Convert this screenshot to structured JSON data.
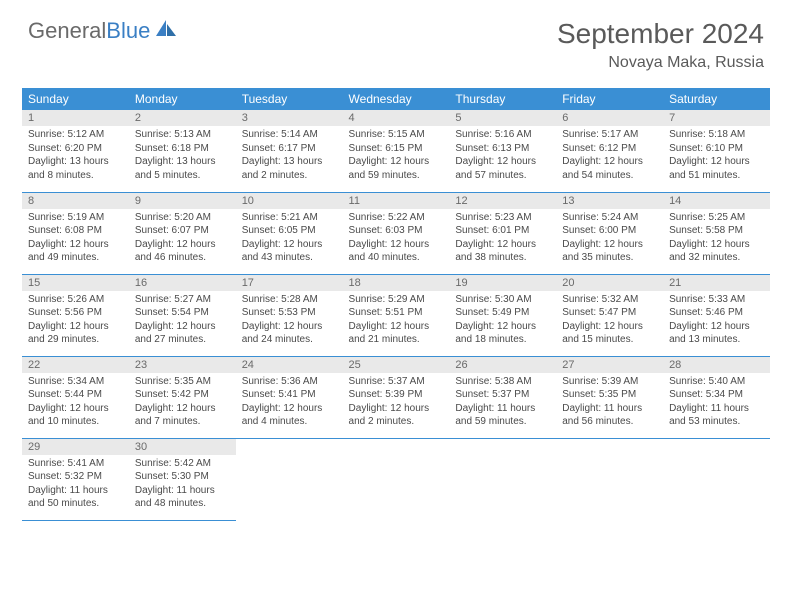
{
  "brand": {
    "part1": "General",
    "part2": "Blue"
  },
  "month_title": "September 2024",
  "location": "Novaya Maka, Russia",
  "colors": {
    "header_bg": "#3a8fd4",
    "daynum_bg": "#e9e9e9",
    "text": "#4a4a4a",
    "brand_gray": "#6a6a6a",
    "brand_blue": "#3a7fc4",
    "border": "#3a8fd4",
    "page_bg": "#ffffff"
  },
  "typography": {
    "month_title_fontsize": 28,
    "location_fontsize": 16,
    "header_fontsize": 12,
    "daynum_fontsize": 11,
    "body_fontsize": 10
  },
  "weekdays": [
    "Sunday",
    "Monday",
    "Tuesday",
    "Wednesday",
    "Thursday",
    "Friday",
    "Saturday"
  ],
  "days": [
    {
      "n": 1,
      "sunrise": "5:12 AM",
      "sunset": "6:20 PM",
      "dh": 13,
      "dm": 8
    },
    {
      "n": 2,
      "sunrise": "5:13 AM",
      "sunset": "6:18 PM",
      "dh": 13,
      "dm": 5
    },
    {
      "n": 3,
      "sunrise": "5:14 AM",
      "sunset": "6:17 PM",
      "dh": 13,
      "dm": 2
    },
    {
      "n": 4,
      "sunrise": "5:15 AM",
      "sunset": "6:15 PM",
      "dh": 12,
      "dm": 59
    },
    {
      "n": 5,
      "sunrise": "5:16 AM",
      "sunset": "6:13 PM",
      "dh": 12,
      "dm": 57
    },
    {
      "n": 6,
      "sunrise": "5:17 AM",
      "sunset": "6:12 PM",
      "dh": 12,
      "dm": 54
    },
    {
      "n": 7,
      "sunrise": "5:18 AM",
      "sunset": "6:10 PM",
      "dh": 12,
      "dm": 51
    },
    {
      "n": 8,
      "sunrise": "5:19 AM",
      "sunset": "6:08 PM",
      "dh": 12,
      "dm": 49
    },
    {
      "n": 9,
      "sunrise": "5:20 AM",
      "sunset": "6:07 PM",
      "dh": 12,
      "dm": 46
    },
    {
      "n": 10,
      "sunrise": "5:21 AM",
      "sunset": "6:05 PM",
      "dh": 12,
      "dm": 43
    },
    {
      "n": 11,
      "sunrise": "5:22 AM",
      "sunset": "6:03 PM",
      "dh": 12,
      "dm": 40
    },
    {
      "n": 12,
      "sunrise": "5:23 AM",
      "sunset": "6:01 PM",
      "dh": 12,
      "dm": 38
    },
    {
      "n": 13,
      "sunrise": "5:24 AM",
      "sunset": "6:00 PM",
      "dh": 12,
      "dm": 35
    },
    {
      "n": 14,
      "sunrise": "5:25 AM",
      "sunset": "5:58 PM",
      "dh": 12,
      "dm": 32
    },
    {
      "n": 15,
      "sunrise": "5:26 AM",
      "sunset": "5:56 PM",
      "dh": 12,
      "dm": 29
    },
    {
      "n": 16,
      "sunrise": "5:27 AM",
      "sunset": "5:54 PM",
      "dh": 12,
      "dm": 27
    },
    {
      "n": 17,
      "sunrise": "5:28 AM",
      "sunset": "5:53 PM",
      "dh": 12,
      "dm": 24
    },
    {
      "n": 18,
      "sunrise": "5:29 AM",
      "sunset": "5:51 PM",
      "dh": 12,
      "dm": 21
    },
    {
      "n": 19,
      "sunrise": "5:30 AM",
      "sunset": "5:49 PM",
      "dh": 12,
      "dm": 18
    },
    {
      "n": 20,
      "sunrise": "5:32 AM",
      "sunset": "5:47 PM",
      "dh": 12,
      "dm": 15
    },
    {
      "n": 21,
      "sunrise": "5:33 AM",
      "sunset": "5:46 PM",
      "dh": 12,
      "dm": 13
    },
    {
      "n": 22,
      "sunrise": "5:34 AM",
      "sunset": "5:44 PM",
      "dh": 12,
      "dm": 10
    },
    {
      "n": 23,
      "sunrise": "5:35 AM",
      "sunset": "5:42 PM",
      "dh": 12,
      "dm": 7
    },
    {
      "n": 24,
      "sunrise": "5:36 AM",
      "sunset": "5:41 PM",
      "dh": 12,
      "dm": 4
    },
    {
      "n": 25,
      "sunrise": "5:37 AM",
      "sunset": "5:39 PM",
      "dh": 12,
      "dm": 2
    },
    {
      "n": 26,
      "sunrise": "5:38 AM",
      "sunset": "5:37 PM",
      "dh": 11,
      "dm": 59
    },
    {
      "n": 27,
      "sunrise": "5:39 AM",
      "sunset": "5:35 PM",
      "dh": 11,
      "dm": 56
    },
    {
      "n": 28,
      "sunrise": "5:40 AM",
      "sunset": "5:34 PM",
      "dh": 11,
      "dm": 53
    },
    {
      "n": 29,
      "sunrise": "5:41 AM",
      "sunset": "5:32 PM",
      "dh": 11,
      "dm": 50
    },
    {
      "n": 30,
      "sunrise": "5:42 AM",
      "sunset": "5:30 PM",
      "dh": 11,
      "dm": 48
    }
  ],
  "labels": {
    "sunrise": "Sunrise:",
    "sunset": "Sunset:",
    "daylight": "Daylight:",
    "hours": "hours",
    "and": "and",
    "minutes": "minutes."
  },
  "layout": {
    "start_weekday": 0,
    "rows": 5,
    "cols": 7
  }
}
